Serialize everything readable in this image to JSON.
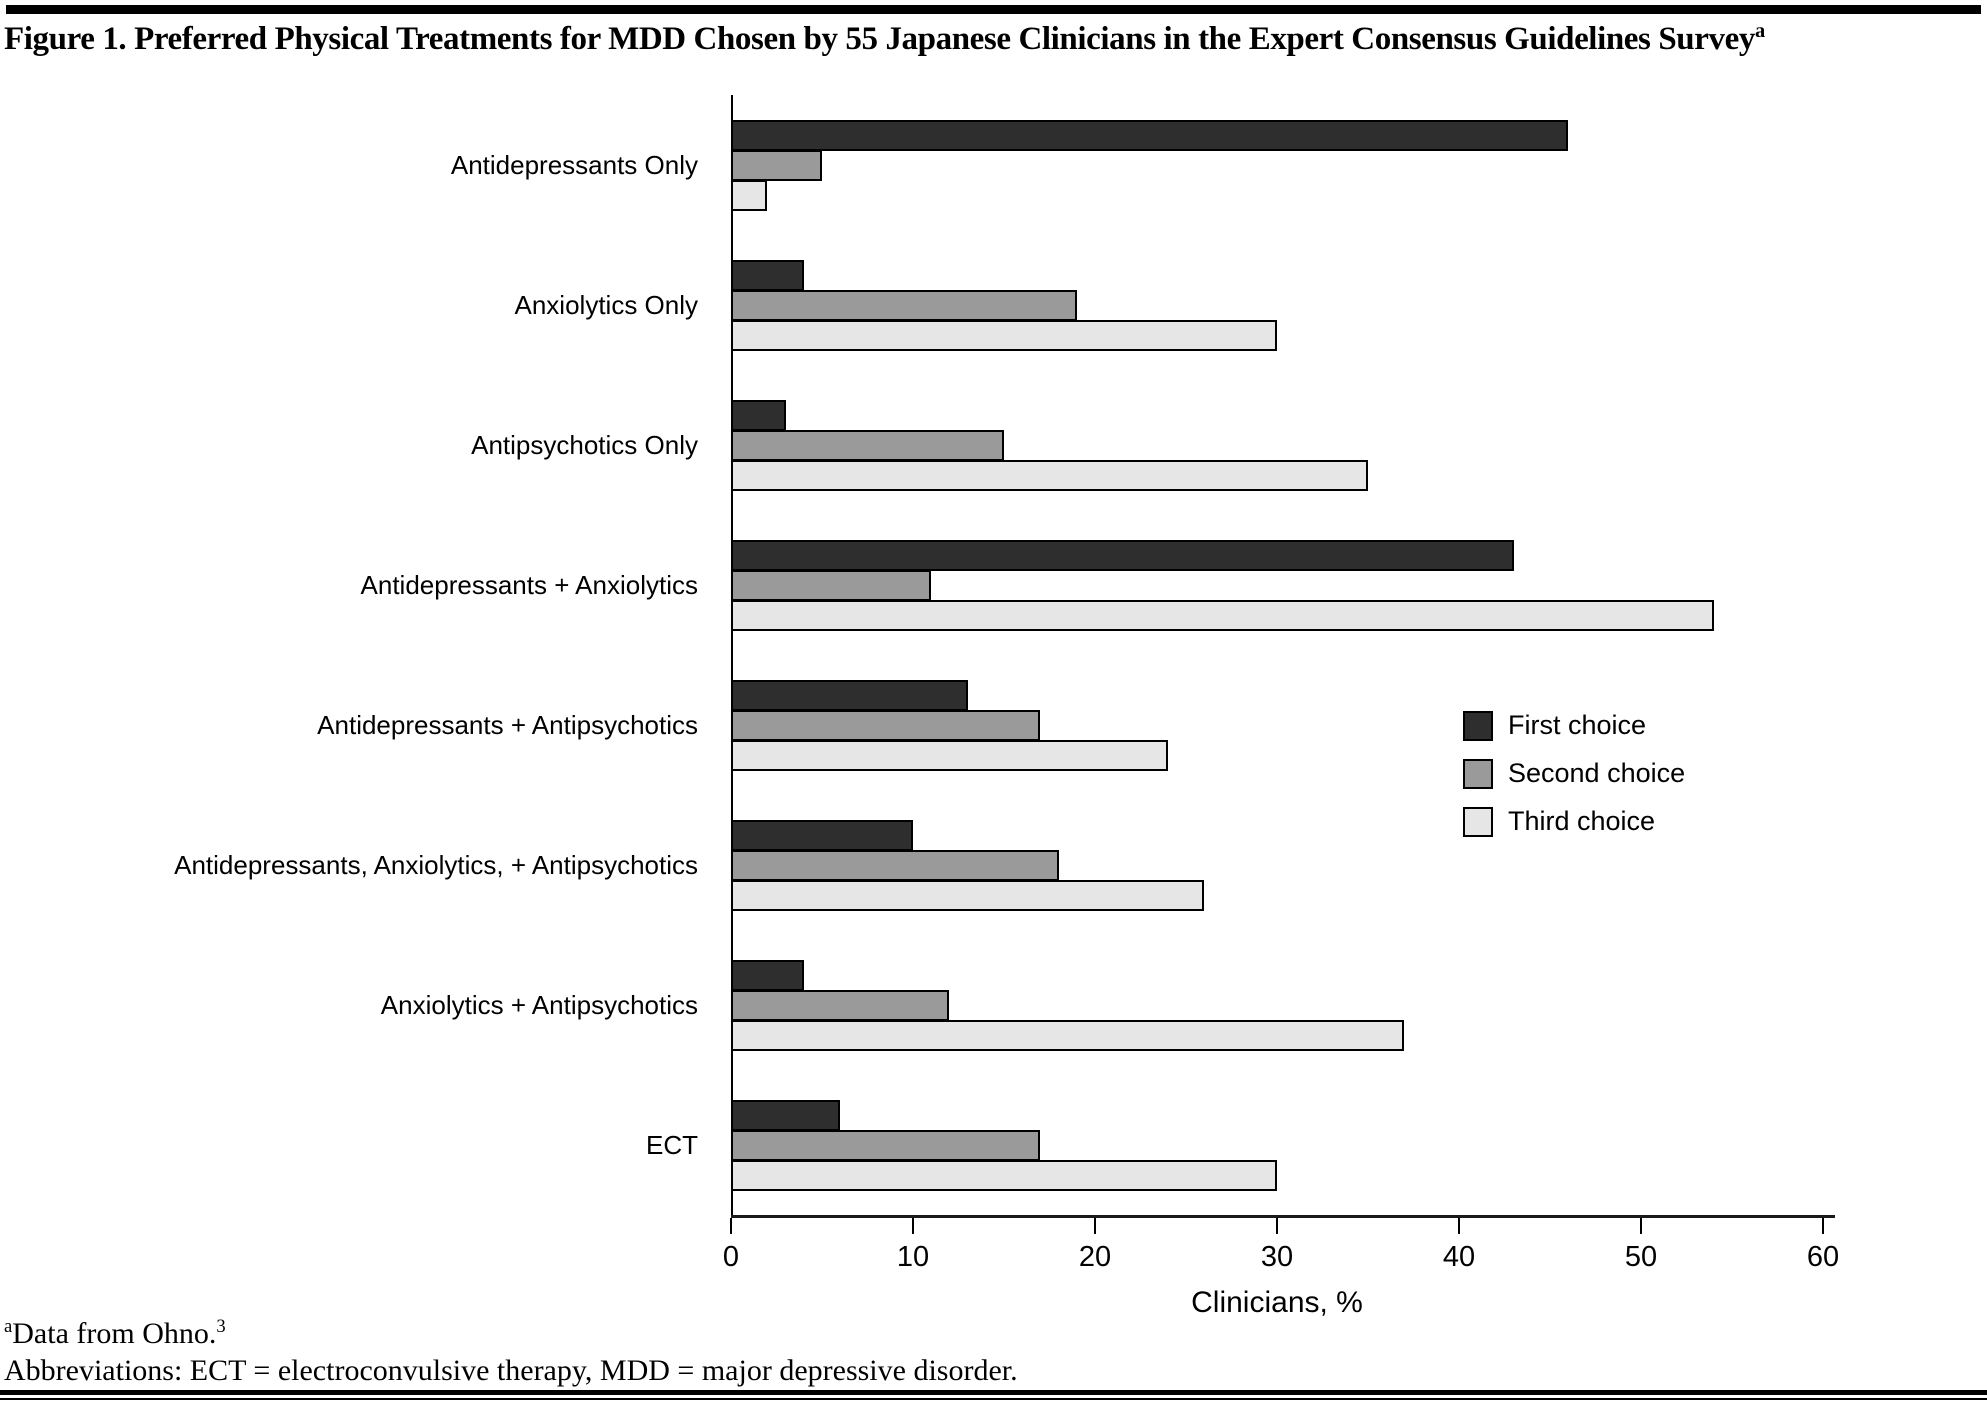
{
  "page": {
    "title": "Figure 1. Preferred Physical Treatments for MDD Chosen by 55 Japanese Clinicians in the Expert Consensus Guidelines Survey",
    "title_sup": "a",
    "footnote_sup": "a",
    "footnote_text": "Data from Ohno.",
    "footnote_ref_sup": "3",
    "abbreviations": "Abbreviations: ECT = electroconvulsive therapy, MDD = major depressive disorder."
  },
  "colors": {
    "first_choice": "#2e2e2e",
    "second_choice": "#9a9a9a",
    "third_choice": "#e6e6e6",
    "bar_border": "#000000",
    "rule": "#000000"
  },
  "chart_data": {
    "type": "bar",
    "orientation": "horizontal",
    "title": "",
    "xlabel": "Clinicians, %",
    "ylabel": "",
    "xlim": [
      0,
      60
    ],
    "xticks": [
      0,
      10,
      20,
      30,
      40,
      50,
      60
    ],
    "grid": false,
    "legend_position": "right-center",
    "legend_entries": [
      "First choice",
      "Second choice",
      "Third choice"
    ],
    "categories": [
      "Antidepressants Only",
      "Anxiolytics Only",
      "Antipsychotics Only",
      "Antidepressants + Anxiolytics",
      "Antidepressants + Antipsychotics",
      "Antidepressants, Anxiolytics, + Antipsychotics",
      "Anxiolytics + Antipsychotics",
      "ECT"
    ],
    "series": [
      {
        "name": "First choice",
        "color": "#2e2e2e",
        "values": [
          46,
          4,
          3,
          43,
          13,
          10,
          4,
          6
        ]
      },
      {
        "name": "Second choice",
        "color": "#9a9a9a",
        "values": [
          5,
          19,
          15,
          11,
          17,
          18,
          12,
          17
        ]
      },
      {
        "name": "Third choice",
        "color": "#e6e6e6",
        "values": [
          2,
          30,
          35,
          54,
          24,
          26,
          37,
          30
        ]
      }
    ]
  }
}
